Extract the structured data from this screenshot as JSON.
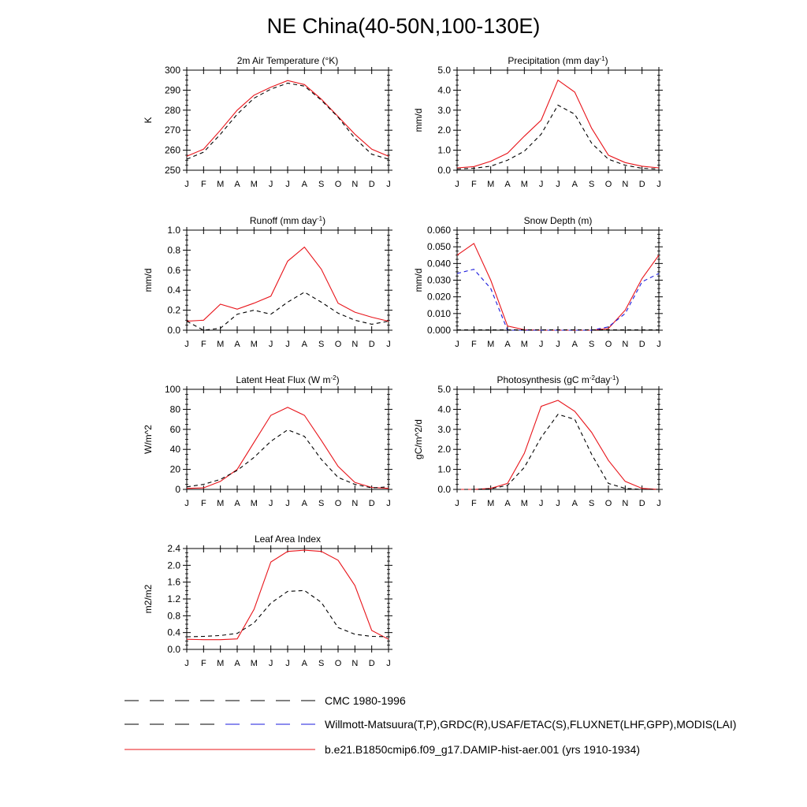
{
  "title": "NE China(40-50N,100-130E)",
  "month_labels": [
    "J",
    "F",
    "M",
    "A",
    "M",
    "J",
    "J",
    "A",
    "S",
    "O",
    "N",
    "D",
    "J"
  ],
  "colors": {
    "model": "#e8141a",
    "obs": "#000000",
    "obs_alt": "#1a1adc",
    "cmc": "#000000"
  },
  "legend": [
    {
      "label": "CMC 1980-1996",
      "style": "dashed",
      "colors": [
        "#000000"
      ]
    },
    {
      "label": "Willmott-Matsuura(T,P),GRDC(R),USAF/ETAC(S),FLUXNET(LHF,GPP),MODIS(LAI)",
      "style": "dashed",
      "colors": [
        "#000000",
        "#1a1adc"
      ]
    },
    {
      "label": "b.e21.B1850cmip6.f09_g17.DAMIP-hist-aer.001 (yrs 1910-1934)",
      "style": "solid",
      "colors": [
        "#e8141a"
      ]
    }
  ],
  "chart_data": [
    {
      "type": "line",
      "title": "2m Air Temperature (°K)",
      "ylabel": "K",
      "ylim": [
        250,
        300
      ],
      "yticks": [
        "250",
        "260",
        "270",
        "280",
        "290",
        "300"
      ],
      "series": [
        {
          "role": "model",
          "style": "solid",
          "color": "#e8141a",
          "values": [
            257,
            260.5,
            270,
            280,
            287.5,
            291.5,
            294.8,
            292.8,
            285.5,
            276.8,
            268,
            260.5,
            257
          ]
        },
        {
          "role": "obs",
          "style": "dashed",
          "color": "#000000",
          "values": [
            255.5,
            259,
            268,
            278,
            286,
            290.5,
            293.5,
            292,
            285,
            276.5,
            266,
            258,
            255.5
          ]
        }
      ]
    },
    {
      "type": "line",
      "title": "Precipitation (mm day-1)",
      "ylabel": "mm/d",
      "ylim": [
        0,
        5
      ],
      "yticks": [
        "0.0",
        "1.0",
        "2.0",
        "3.0",
        "4.0",
        "5.0"
      ],
      "series": [
        {
          "role": "model",
          "style": "solid",
          "color": "#e8141a",
          "values": [
            0.12,
            0.18,
            0.45,
            0.85,
            1.7,
            2.5,
            4.5,
            3.9,
            2.1,
            0.75,
            0.38,
            0.2,
            0.12
          ]
        },
        {
          "role": "obs",
          "style": "dashed",
          "color": "#000000",
          "values": [
            0.06,
            0.1,
            0.2,
            0.5,
            0.95,
            1.8,
            3.25,
            2.8,
            1.35,
            0.55,
            0.25,
            0.1,
            0.06
          ]
        }
      ]
    },
    {
      "type": "line",
      "title": "Runoff (mm day-1)",
      "ylabel": "mm/d",
      "ylim": [
        0,
        1
      ],
      "yticks": [
        "0.0",
        "0.2",
        "0.4",
        "0.6",
        "0.8",
        "1.0"
      ],
      "series": [
        {
          "role": "model",
          "style": "solid",
          "color": "#e8141a",
          "values": [
            0.09,
            0.1,
            0.26,
            0.21,
            0.27,
            0.34,
            0.69,
            0.83,
            0.61,
            0.27,
            0.18,
            0.13,
            0.09
          ]
        },
        {
          "role": "obs",
          "style": "dashed",
          "color": "#000000",
          "values": [
            0.09,
            0.0,
            0.02,
            0.16,
            0.2,
            0.16,
            0.28,
            0.38,
            0.28,
            0.17,
            0.1,
            0.06,
            0.09
          ]
        }
      ]
    },
    {
      "type": "line",
      "title": "Snow Depth (m)",
      "ylabel": "mm/d",
      "ylim": [
        0,
        0.06
      ],
      "yticks": [
        "0.000",
        "0.010",
        "0.020",
        "0.030",
        "0.040",
        "0.050",
        "0.060"
      ],
      "series": [
        {
          "role": "model",
          "style": "solid",
          "color": "#e8141a",
          "values": [
            0.045,
            0.052,
            0.03,
            0.0025,
            0.0003,
            0.0,
            0.0,
            0.0,
            0.0,
            0.001,
            0.012,
            0.031,
            0.045
          ]
        },
        {
          "role": "obs_alt",
          "style": "dashed",
          "color": "#1a1adc",
          "values": [
            0.034,
            0.0365,
            0.025,
            0.0,
            0.0,
            0.0,
            0.0,
            0.0,
            0.0,
            0.002,
            0.01,
            0.029,
            0.034
          ]
        },
        {
          "role": "cmc",
          "style": "dashed",
          "color": "#000000",
          "values": [
            0.0002,
            0.0002,
            0.0002,
            0.0002,
            0.0002,
            0.0002,
            0.0002,
            0.0002,
            0.0002,
            0.0002,
            0.0002,
            0.0002,
            0.0002
          ]
        }
      ]
    },
    {
      "type": "line",
      "title": "Latent Heat Flux (W m-2)",
      "ylabel": "W/m^2",
      "ylim": [
        0,
        100
      ],
      "yticks": [
        "0",
        "20",
        "40",
        "60",
        "80",
        "100"
      ],
      "series": [
        {
          "role": "model",
          "style": "solid",
          "color": "#e8141a",
          "values": [
            1,
            1.5,
            8,
            20,
            47,
            74,
            82,
            74,
            49,
            23,
            7,
            2,
            1
          ]
        },
        {
          "role": "obs",
          "style": "dashed",
          "color": "#000000",
          "values": [
            2.5,
            5,
            10,
            19,
            32,
            48,
            59.5,
            53,
            30,
            12,
            5,
            1.5,
            2.5
          ]
        }
      ]
    },
    {
      "type": "line",
      "title": "Photosynthesis (gC m-2day-1)",
      "ylabel": "gC/m^2/d",
      "ylim": [
        0,
        5
      ],
      "yticks": [
        "0.0",
        "1.0",
        "2.0",
        "3.0",
        "4.0",
        "5.0"
      ],
      "series": [
        {
          "role": "model",
          "style": "solid",
          "color": "#e8141a",
          "values": [
            0.0,
            0.0,
            0.05,
            0.3,
            1.8,
            4.15,
            4.45,
            3.9,
            2.85,
            1.45,
            0.4,
            0.05,
            0.0
          ]
        },
        {
          "role": "obs",
          "style": "dashed",
          "color": "#000000",
          "values": [
            0.0,
            0.0,
            0.03,
            0.2,
            1.1,
            2.6,
            3.75,
            3.5,
            1.75,
            0.3,
            0.05,
            0.0,
            0.0
          ]
        }
      ]
    },
    {
      "type": "line",
      "title": "Leaf Area Index",
      "ylabel": "m2/m2",
      "ylim": [
        0,
        2.4
      ],
      "yticks": [
        "0.0",
        "0.4",
        "0.8",
        "1.2",
        "1.6",
        "2.0",
        "2.4"
      ],
      "series": [
        {
          "role": "model",
          "style": "solid",
          "color": "#e8141a",
          "values": [
            0.24,
            0.23,
            0.23,
            0.25,
            0.95,
            2.08,
            2.33,
            2.36,
            2.33,
            2.12,
            1.52,
            0.45,
            0.24
          ]
        },
        {
          "role": "obs",
          "style": "dashed",
          "color": "#000000",
          "values": [
            0.3,
            0.31,
            0.33,
            0.38,
            0.63,
            1.1,
            1.38,
            1.4,
            1.12,
            0.52,
            0.36,
            0.31,
            0.3
          ]
        }
      ]
    }
  ]
}
